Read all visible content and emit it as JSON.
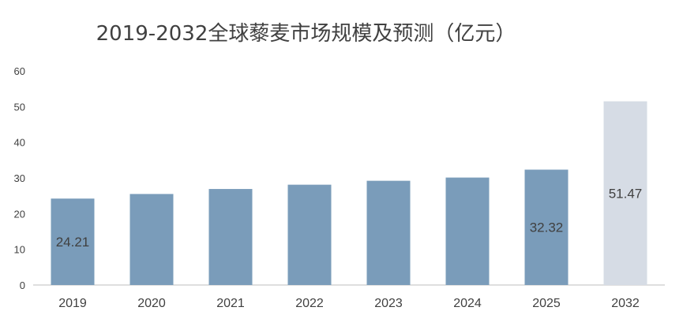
{
  "chart_data": {
    "type": "bar",
    "title": "2019-2032全球藜麦市场规模及预测（亿元）",
    "categories": [
      "2019",
      "2020",
      "2021",
      "2022",
      "2023",
      "2024",
      "2025",
      "2032"
    ],
    "values": [
      24.21,
      25.5,
      26.9,
      28.1,
      29.2,
      30.1,
      32.32,
      51.47
    ],
    "data_labels": [
      {
        "index": 0,
        "text": "24.21"
      },
      {
        "index": 6,
        "text": "32.32"
      },
      {
        "index": 7,
        "text": "51.47"
      }
    ],
    "ylim": [
      0,
      60
    ],
    "yticks": [
      "0",
      "10",
      "20",
      "30",
      "40",
      "50",
      "60"
    ],
    "xlabel": "",
    "ylabel": "",
    "grid": false,
    "legend": "none",
    "colors": {
      "actual": "#7a9cba",
      "forecast": "#d6dce5",
      "text": "#404040",
      "axis": "#bfbfbf"
    }
  }
}
